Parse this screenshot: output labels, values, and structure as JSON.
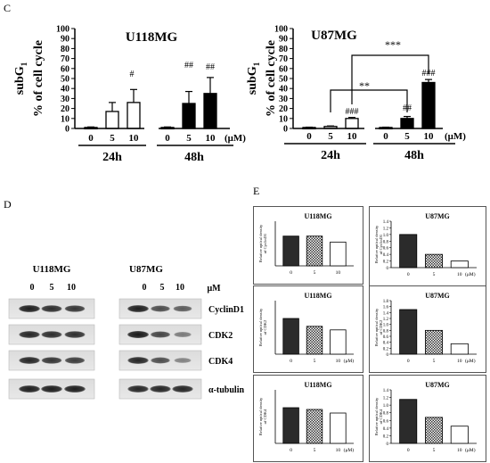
{
  "panel_labels": {
    "c": "C",
    "d": "D",
    "e": "E"
  },
  "panel_c": {
    "ylabel_main": "% of cell cycle",
    "ylabel_sub": "subG",
    "ylabel_sub_index": "1",
    "conc_unit": "(μM)",
    "time_labels": [
      "24h",
      "48h"
    ],
    "u118": {
      "title": "U118MG",
      "doses": [
        "0",
        "5",
        "10"
      ],
      "yticks": [
        "0",
        "10",
        "20",
        "30",
        "40",
        "50",
        "60",
        "70",
        "80",
        "90",
        "100"
      ],
      "sig_24_10": "#",
      "sig_48_5": "##",
      "sig_48_10": "##"
    },
    "u87": {
      "title": "U87MG",
      "doses": [
        "0",
        "5",
        "10"
      ],
      "yticks": [
        "0",
        "10",
        "20",
        "30",
        "40",
        "50",
        "60",
        "70",
        "80",
        "90",
        "100"
      ],
      "sig_24_10": "###",
      "sig_48_5": "##",
      "sig_48_10": "###",
      "bracket_inner": "**",
      "bracket_outer": "***"
    }
  },
  "panel_d": {
    "u118_title": "U118MG",
    "u87_title": "U87MG",
    "doses": [
      "0",
      "5",
      "10"
    ],
    "unit": "μM",
    "proteins": [
      "CyclinD1",
      "CDK2",
      "CDK4",
      "α-tubulin"
    ]
  },
  "panel_e": {
    "ylabels": [
      "Relative optical density of CyclinD1",
      "Relative optical density of CDK2",
      "Relative optical density of CDK4"
    ],
    "cells": [
      {
        "title": "U118MG",
        "yticks": [],
        "doses": [
          "0",
          "5",
          "10"
        ],
        "unit": ""
      },
      {
        "title": "U87MG",
        "yticks": [
          "0",
          "0.2",
          "0.4",
          "0.6",
          "0.8",
          "1.0",
          "1.2",
          "1.4"
        ],
        "doses": [
          "0",
          "5",
          "10"
        ],
        "unit": "(μM)"
      },
      {
        "title": "U118MG",
        "yticks": [],
        "doses": [
          "0",
          "5",
          "10"
        ],
        "unit": "(μM)"
      },
      {
        "title": "U87MG",
        "yticks": [
          "0",
          "0.2",
          "0.4",
          "0.6",
          "0.8",
          "1.0",
          "1.2",
          "1.4",
          "1.6",
          "1.8"
        ],
        "doses": [
          "0",
          "5",
          "10"
        ],
        "unit": "(μM)"
      },
      {
        "title": "U118MG",
        "yticks": [],
        "doses": [
          "0",
          "5",
          "10"
        ],
        "unit": "(μM)"
      },
      {
        "title": "U87MG",
        "yticks": [
          "0",
          "0.2",
          "0.4",
          "0.6",
          "0.8",
          "1.0",
          "1.2",
          "1.4"
        ],
        "doses": [
          "0",
          "5",
          "10"
        ],
        "unit": "(μM)"
      }
    ]
  },
  "chart_data": [
    {
      "type": "bar",
      "title": "U118MG",
      "ylabel": "subG1 % of cell cycle",
      "ylim": [
        0,
        100
      ],
      "categories": [
        "24h 0",
        "24h 5",
        "24h 10",
        "48h 0",
        "48h 5",
        "48h 10"
      ],
      "values": [
        1,
        17,
        26,
        1,
        25,
        35
      ],
      "errors": [
        0.5,
        9,
        13,
        0.5,
        12,
        16
      ],
      "fill": [
        "white",
        "white",
        "white",
        "black",
        "black",
        "black"
      ]
    },
    {
      "type": "bar",
      "title": "U87MG",
      "ylabel": "subG1 % of cell cycle",
      "ylim": [
        0,
        100
      ],
      "categories": [
        "24h 0",
        "24h 5",
        "24h 10",
        "48h 0",
        "48h 5",
        "48h 10"
      ],
      "values": [
        1,
        2,
        10,
        1,
        10,
        46
      ],
      "errors": [
        0.3,
        0.5,
        1,
        0.3,
        2,
        3
      ],
      "fill": [
        "white",
        "white",
        "white",
        "black",
        "black",
        "black"
      ]
    },
    {
      "type": "bar",
      "title": "U118MG",
      "ylabel": "Relative optical density of CyclinD1",
      "categories": [
        "0",
        "5",
        "10"
      ],
      "values": [
        1.0,
        1.0,
        0.8
      ]
    },
    {
      "type": "bar",
      "title": "U87MG",
      "ylabel": "Relative optical density of CyclinD1",
      "ylim": [
        0,
        1.4
      ],
      "categories": [
        "0",
        "5",
        "10"
      ],
      "values": [
        1.0,
        0.4,
        0.2
      ]
    },
    {
      "type": "bar",
      "title": "U118MG",
      "ylabel": "Relative optical density of CDK2",
      "categories": [
        "0",
        "5",
        "10"
      ],
      "values": [
        1.0,
        0.78,
        0.68
      ]
    },
    {
      "type": "bar",
      "title": "U87MG",
      "ylabel": "Relative optical density of CDK2",
      "ylim": [
        0,
        1.8
      ],
      "categories": [
        "0",
        "5",
        "10"
      ],
      "values": [
        1.5,
        0.8,
        0.35
      ]
    },
    {
      "type": "bar",
      "title": "U118MG",
      "ylabel": "Relative optical density of CDK4",
      "categories": [
        "0",
        "5",
        "10"
      ],
      "values": [
        1.0,
        0.95,
        0.85
      ]
    },
    {
      "type": "bar",
      "title": "U87MG",
      "ylabel": "Relative optical density of CDK4",
      "ylim": [
        0,
        1.4
      ],
      "categories": [
        "0",
        "5",
        "10"
      ],
      "values": [
        1.15,
        0.68,
        0.45
      ]
    }
  ]
}
